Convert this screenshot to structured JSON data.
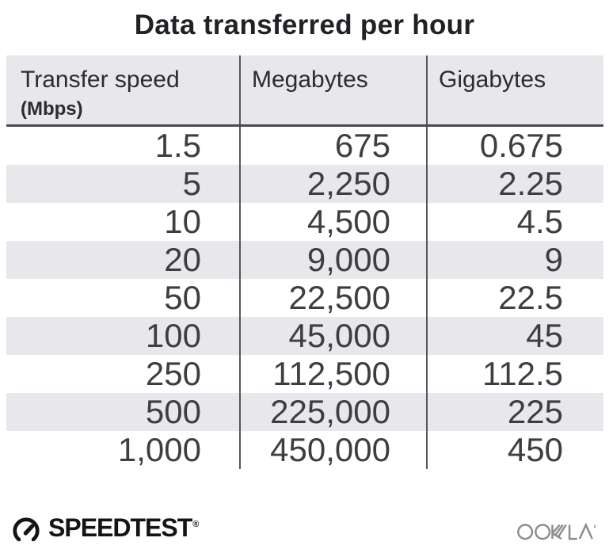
{
  "title": "Data transferred per hour",
  "table": {
    "columns": [
      {
        "label": "Transfer speed",
        "sublabel": "(Mbps)"
      },
      {
        "label": "Megabytes"
      },
      {
        "label": "Gigabytes"
      }
    ],
    "rows": [
      [
        "1.5",
        "675",
        "0.675"
      ],
      [
        "5",
        "2,250",
        "2.25"
      ],
      [
        "10",
        "4,500",
        "4.5"
      ],
      [
        "20",
        "9,000",
        "9"
      ],
      [
        "50",
        "22,500",
        "22.5"
      ],
      [
        "100",
        "45,000",
        "45"
      ],
      [
        "250",
        "112,500",
        "112.5"
      ],
      [
        "500",
        "225,000",
        "225"
      ],
      [
        "1,000",
        "450,000",
        "450"
      ]
    ]
  },
  "footer": {
    "speedtest_label": "SPEEDTEST",
    "reg_mark": "®",
    "ookla_label": "OOKLA"
  },
  "colors": {
    "stripe": "#e8e7eb",
    "divider": "#565558",
    "header_border": "#4a494d",
    "title_text": "#222226",
    "header_text": "#2c2b30",
    "body_text": "#3e3e40",
    "ookla_gray": "#8d8d8f",
    "speedtest_black": "#131318"
  },
  "chart_data": {
    "type": "table",
    "title": "Data transferred per hour",
    "columns": [
      "Transfer speed (Mbps)",
      "Megabytes",
      "Gigabytes"
    ],
    "rows": [
      [
        1.5,
        675,
        0.675
      ],
      [
        5,
        2250,
        2.25
      ],
      [
        10,
        4500,
        4.5
      ],
      [
        20,
        9000,
        9
      ],
      [
        50,
        22500,
        22.5
      ],
      [
        100,
        45000,
        45
      ],
      [
        250,
        112500,
        112.5
      ],
      [
        500,
        225000,
        225
      ],
      [
        1000,
        450000,
        450
      ]
    ],
    "layout": {
      "striped_rows": true,
      "column_dividers": true,
      "value_alignment": "right"
    }
  }
}
